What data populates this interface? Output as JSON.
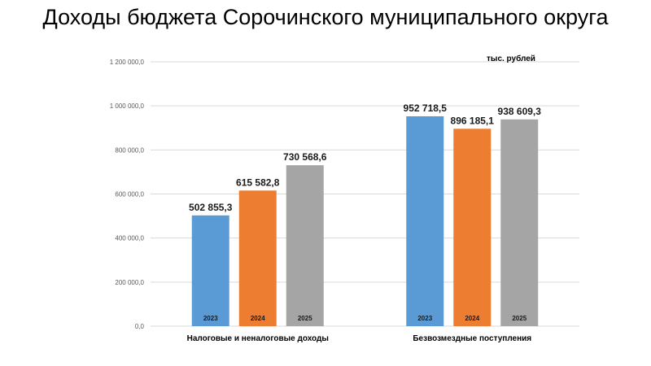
{
  "title": "Доходы бюджета Сорочинского муниципального округа",
  "unit_label": "тыс. рублей",
  "colors": {
    "2023": "#5b9bd5",
    "2024": "#ed7d31",
    "2025": "#a5a5a5"
  },
  "chart_data": {
    "type": "bar",
    "title": "Доходы бюджета Сорочинского муниципального округа",
    "categories": [
      "Налоговые и неналоговые доходы",
      "Безвозмездные поступления"
    ],
    "series": [
      {
        "name": "2023",
        "values": [
          502855.3,
          952718.5
        ],
        "labels": [
          "502 855,3",
          "952 718,5"
        ]
      },
      {
        "name": "2024",
        "values": [
          615582.8,
          896185.1
        ],
        "labels": [
          "615 582,8",
          "896 185,1"
        ]
      },
      {
        "name": "2025",
        "values": [
          730568.6,
          938609.3
        ],
        "labels": [
          "730 568,6",
          "938 609,3"
        ]
      }
    ],
    "ylim": [
      0,
      1200000
    ],
    "y_ticks": [
      "0,0",
      "200 000,0",
      "400 000,0",
      "600 000,0",
      "800 000,0",
      "1 000 000,0",
      "1 200 000,0"
    ],
    "grid": true,
    "xlabel": "",
    "ylabel": ""
  }
}
